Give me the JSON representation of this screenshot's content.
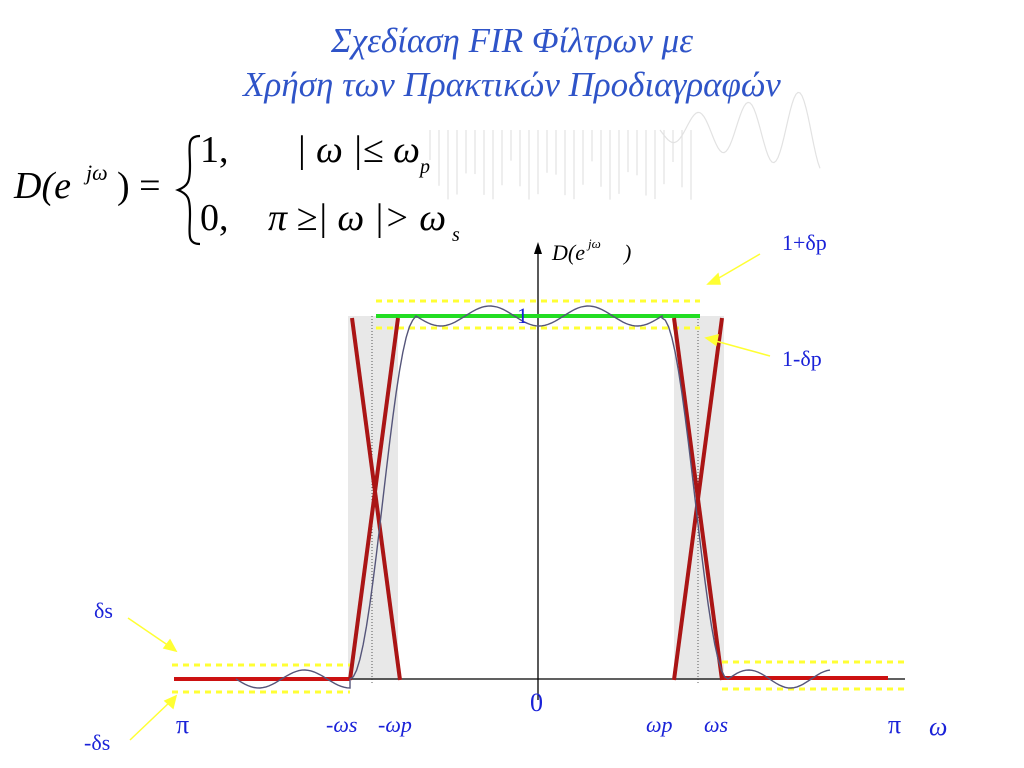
{
  "title": {
    "line1": "Σχεδίαση  FIR Φίλτρων με",
    "line2": "Χρήση των  Πρακτικών Προδιαγραφών"
  },
  "equation": {
    "lhs": "D(e",
    "lhs_sup": "jω",
    "lhs_close": ") =",
    "case1_value": "1,",
    "case1_condition": "| ω |≤ ω",
    "case1_sub": "p",
    "case2_value": "0,",
    "case2_condition": "π ≥| ω |> ω",
    "case2_sub": "s"
  },
  "axis": {
    "y_label": "D(e",
    "y_label_sup": "jω",
    "y_label_close": ")",
    "one_label": "1",
    "zero_label": "0",
    "omega_label": "ω"
  },
  "annotations": {
    "one_plus_delta_p": "1+δp",
    "one_minus_delta_p": "1-δp",
    "delta_s": "δs",
    "minus_delta_s": "-δs"
  },
  "x_ticks": {
    "left_pi": "π",
    "minus_omega_s": "-ωs",
    "minus_omega_p": "-ωp",
    "omega_p": "ωp",
    "omega_s": "ωs",
    "right_pi": "π"
  },
  "colors": {
    "title": "#2f54c8",
    "labels": "#1a22d8",
    "red_lines": "#cc1111",
    "green_line": "#22dd22",
    "tolerance_dashes": "#ffff33",
    "transition_band": "#e8e8e8",
    "response_curve": "#55557a"
  }
}
